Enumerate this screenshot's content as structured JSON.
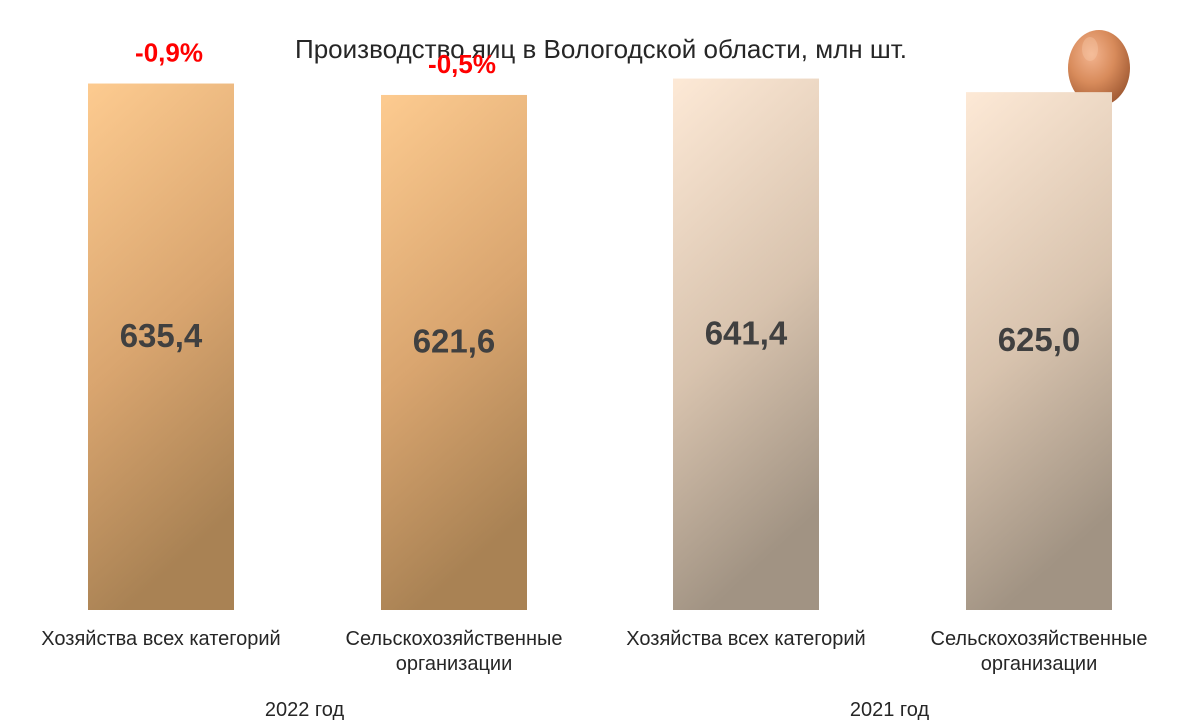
{
  "chart_data": {
    "type": "bar",
    "title": "Производство яиц в Вологодской области, млн шт.",
    "categories": [
      "Хозяйства всех категорий",
      "Сельскохозяйственные организации",
      "Хозяйства всех категорий",
      "Сельскохозяйственные организации"
    ],
    "category_lines": [
      [
        "Хозяйства всех категорий"
      ],
      [
        "Сельскохозяйственные",
        "организации"
      ],
      [
        "Хозяйства всех категорий"
      ],
      [
        "Сельскохозяйственные",
        "организации"
      ]
    ],
    "values": [
      635.4,
      621.6,
      641.4,
      625.0
    ],
    "value_labels": [
      "635,4",
      "621,6",
      "641,4",
      "625,0"
    ],
    "changes": [
      "-0,9%",
      "-0,5%",
      "",
      ""
    ],
    "groups": [
      {
        "label": "2022 год",
        "bars": [
          0,
          1
        ]
      },
      {
        "label": "2021 год",
        "bars": [
          2,
          3
        ]
      }
    ],
    "ylim": [
      0,
      700
    ],
    "grid": false,
    "legend": "none",
    "xlabel": "",
    "ylabel": ""
  },
  "colors": {
    "bar_2022_top": "#fdcb90",
    "bar_2022_bottom": "#a98254",
    "bar_2021_top": "#fde9d6",
    "bar_2021_bottom": "#a19383",
    "change_text": "#ff0000",
    "value_text": "#404040"
  },
  "icons": {
    "egg": "egg-icon"
  }
}
